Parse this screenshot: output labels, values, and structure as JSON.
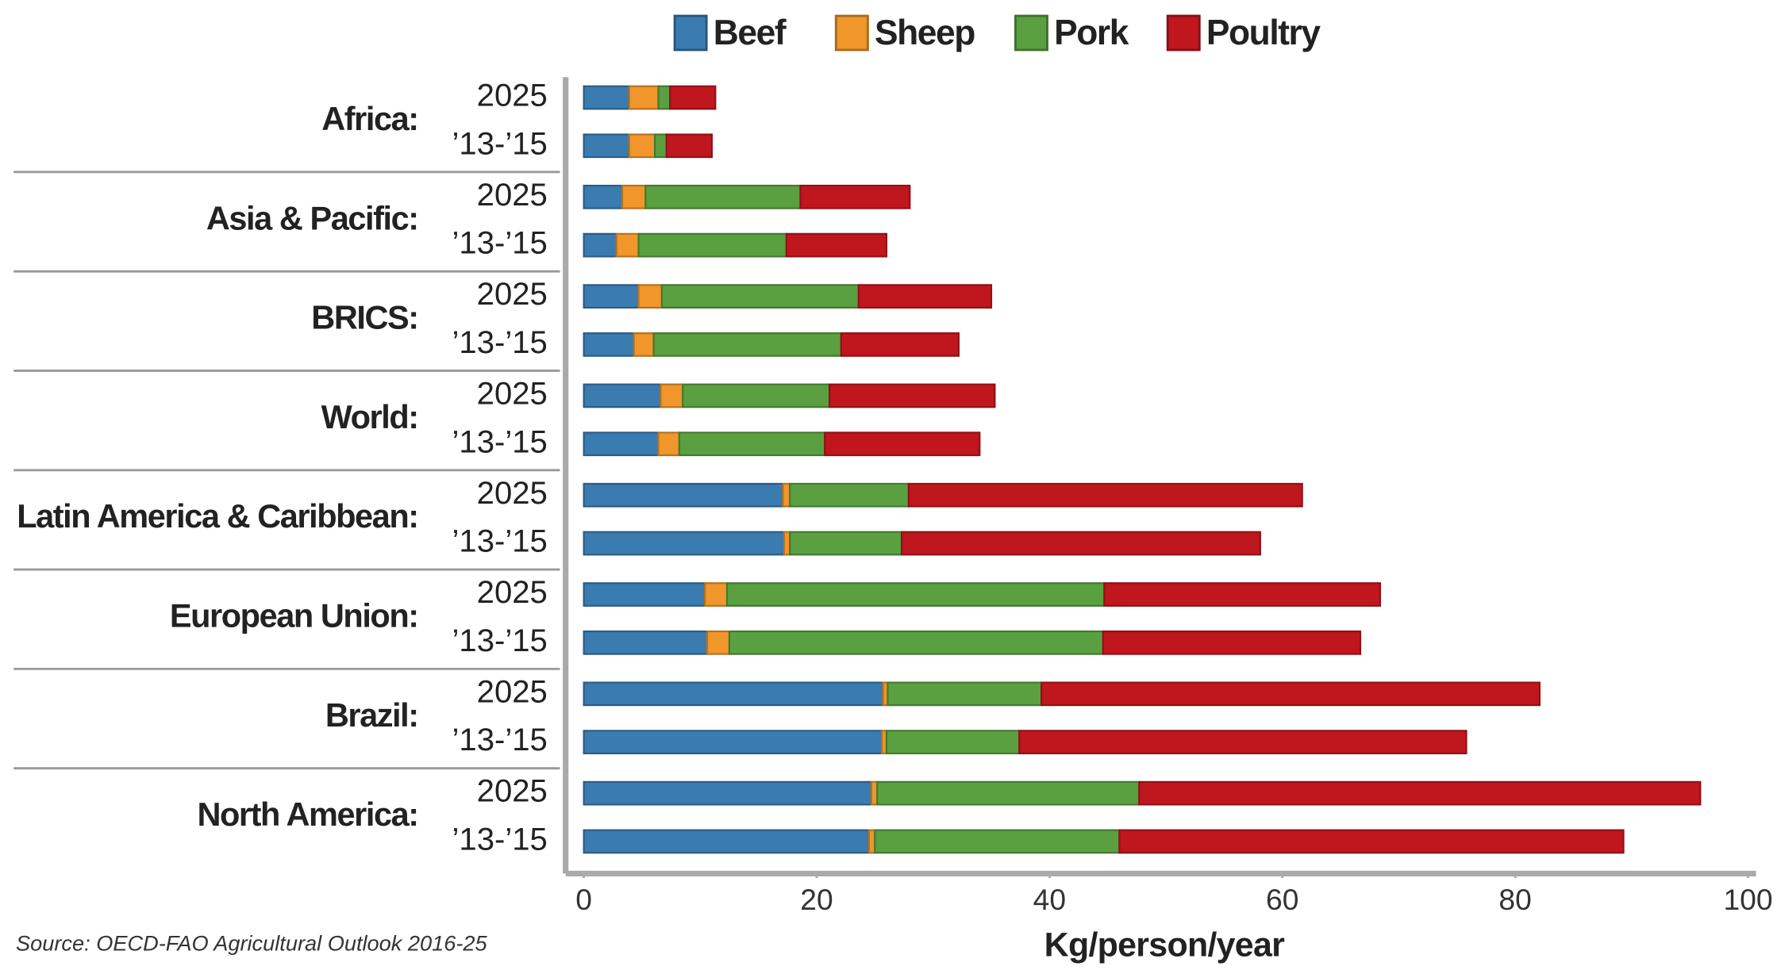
{
  "chart_data": {
    "type": "stacked-bar-h",
    "x_label": "Kg/person/year",
    "source": "Source: OECD-FAO Agricultural Outlook 2016-25",
    "groups": [
      "Africa:",
      "Asia & Pacific:",
      "BRICS:",
      "World:",
      "Latin America & Caribbean:",
      "European Union:",
      "Brazil:",
      "North America:"
    ],
    "categories": [
      "2025",
      "’13-’15",
      "2025",
      "’13-’15",
      "2025",
      "’13-’15",
      "2025",
      "’13-’15",
      "2025",
      "’13-’15",
      "2025",
      "’13-’15",
      "2025",
      "’13-’15",
      "2025",
      "’13-’15"
    ],
    "series": [
      {
        "name": "Beef",
        "color": "#3a7bb0",
        "values": [
          3.9,
          3.9,
          3.3,
          2.8,
          4.7,
          4.3,
          6.6,
          6.4,
          17.1,
          17.2,
          10.4,
          10.6,
          25.7,
          25.6,
          24.7,
          24.5
        ]
      },
      {
        "name": "Sheep",
        "color": "#f0962a",
        "values": [
          2.5,
          2.2,
          2.0,
          1.9,
          2.0,
          1.7,
          1.9,
          1.8,
          0.6,
          0.5,
          1.9,
          1.9,
          0.4,
          0.4,
          0.5,
          0.5
        ]
      },
      {
        "name": "Pork",
        "color": "#5aa040",
        "values": [
          1.0,
          1.0,
          13.3,
          12.7,
          16.9,
          16.1,
          12.6,
          12.5,
          10.2,
          9.6,
          32.4,
          32.1,
          13.2,
          11.4,
          22.5,
          21.0
        ]
      },
      {
        "name": "Poultry",
        "color": "#c0161e",
        "values": [
          3.9,
          3.9,
          9.4,
          8.6,
          11.4,
          10.1,
          14.2,
          13.3,
          33.8,
          30.8,
          23.7,
          22.1,
          42.8,
          38.4,
          48.2,
          43.3
        ]
      }
    ],
    "xlim": [
      0,
      100
    ],
    "xticks": [
      0,
      20,
      40,
      60,
      80,
      100
    ],
    "legend": "top"
  }
}
